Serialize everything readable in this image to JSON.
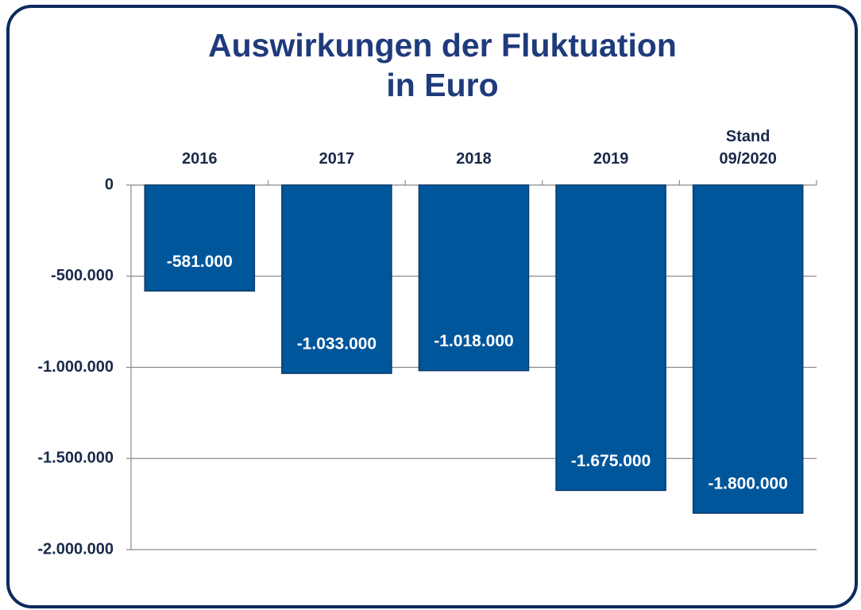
{
  "chart_data": {
    "type": "bar",
    "title": [
      "Auswirkungen der Fluktuation",
      "in Euro"
    ],
    "categories": [
      "2016",
      "2017",
      "2018",
      "2019",
      "Stand 09/2020"
    ],
    "values": [
      -581000,
      -1033000,
      -1018000,
      -1675000,
      -1800000
    ],
    "value_labels": [
      "-581.000",
      "-1.033.000",
      "-1.018.000",
      "-1.675.000",
      "-1.800.000"
    ],
    "color": "#00569b",
    "ylim": [
      -2000000,
      0
    ],
    "yticks": [
      0,
      {
        "value": -500000,
        "label": "-500.000"
      },
      {
        "value": -1000000,
        "label": "-1.000.000"
      },
      {
        "value": -1500000,
        "label": "-1.500.000"
      },
      {
        "value": -2000000,
        "label": "-2.000.000"
      }
    ],
    "grid": true
  }
}
